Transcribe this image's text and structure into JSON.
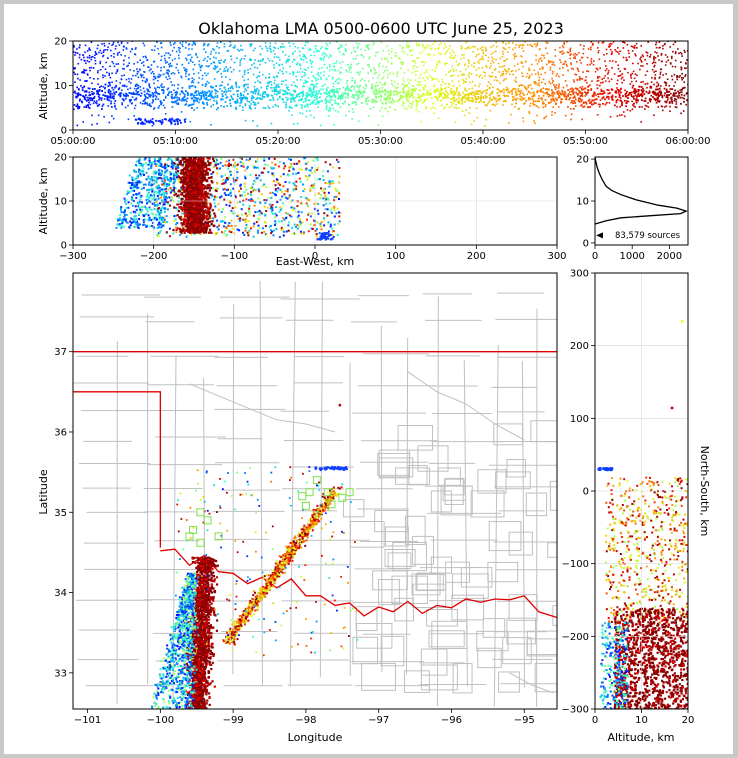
{
  "figure": {
    "title": "Oklahoma LMA 0500-0600 UTC June 25, 2023"
  },
  "colors": {
    "border": "#000000",
    "state_line": "#e00000",
    "county_line": "#c0c0c0",
    "grid": "#d8d8d8",
    "square_marker": "#7ee04a",
    "density_line": "#000000"
  },
  "chart_data": [
    {
      "name": "altitude-time",
      "type": "scatter",
      "xlabel": "",
      "ylabel": "Altitude, km",
      "xlim": [
        "05:00:00",
        "06:00:00"
      ],
      "ylim": [
        0,
        20
      ],
      "xticks": [
        "05:00:00",
        "05:10:00",
        "05:20:00",
        "05:30:00",
        "05:40:00",
        "05:50:00",
        "06:00:00"
      ],
      "yticks": [
        "0",
        "10",
        "20"
      ],
      "color_scale": "time (blue to dark red)"
    },
    {
      "name": "altitude-east-west",
      "type": "scatter",
      "xlabel": "East-West, km",
      "ylabel": "Altitude, km",
      "xlim": [
        -300,
        300
      ],
      "ylim": [
        0,
        20
      ],
      "xticks": [
        "−300",
        "−200",
        "−100",
        "0",
        "100",
        "200",
        "300"
      ],
      "yticks": [
        "0",
        "10",
        "20"
      ]
    },
    {
      "name": "altitude-histogram",
      "type": "line",
      "xlim": [
        0,
        2500
      ],
      "ylim": [
        0,
        20
      ],
      "xticks": [
        "0",
        "1000",
        "2000"
      ],
      "yticks": [
        "0",
        "10",
        "20"
      ],
      "annotation": "83,579 sources",
      "profile": [
        [
          0,
          4.5
        ],
        [
          300,
          5.3
        ],
        [
          700,
          6.0
        ],
        [
          1500,
          6.5
        ],
        [
          2300,
          7.0
        ],
        [
          2450,
          7.6
        ],
        [
          2200,
          8.3
        ],
        [
          1700,
          9.0
        ],
        [
          1100,
          10.3
        ],
        [
          700,
          11.5
        ],
        [
          450,
          12.5
        ],
        [
          300,
          13.5
        ],
        [
          200,
          15.0
        ],
        [
          120,
          16.5
        ],
        [
          60,
          18.0
        ],
        [
          20,
          19.5
        ],
        [
          0,
          20.5
        ]
      ]
    },
    {
      "name": "plan-view",
      "type": "scatter",
      "xlabel": "Longitude",
      "ylabel": "Latitude",
      "xlim": [
        -101.2,
        -94.55
      ],
      "ylim": [
        32.55,
        37.98
      ],
      "xticks": [
        "−101",
        "−100",
        "−99",
        "−98",
        "−97",
        "−96",
        "−95"
      ],
      "yticks": [
        "33",
        "34",
        "35",
        "36",
        "37"
      ]
    },
    {
      "name": "north-south-altitude",
      "type": "scatter",
      "xlabel": "Altitude, km",
      "ylabel": "North-South, km",
      "xlim": [
        0,
        20
      ],
      "ylim": [
        -300,
        300
      ],
      "xticks": [
        "0",
        "10",
        "20"
      ],
      "yticks": [
        "−300",
        "−200",
        "−100",
        "0",
        "100",
        "200",
        "300"
      ]
    }
  ]
}
